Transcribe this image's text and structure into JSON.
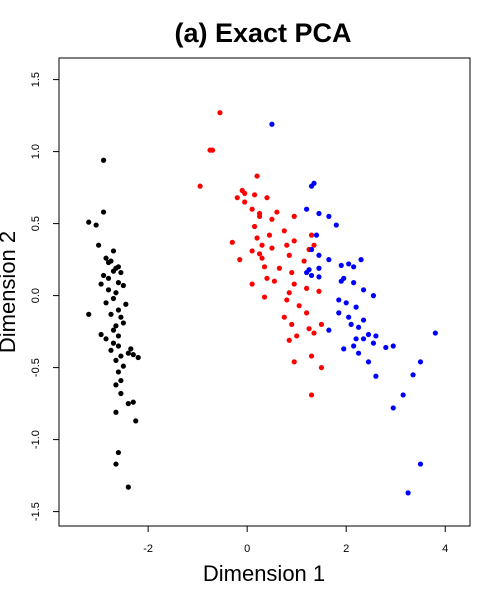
{
  "chart_data": {
    "type": "scatter",
    "title": "(a) Exact PCA",
    "xlabel": "Dimension 1",
    "ylabel": "Dimension 2",
    "xlim": [
      -3.8,
      4.5
    ],
    "ylim": [
      -1.6,
      1.65
    ],
    "xticks": [
      -2,
      0,
      2,
      4
    ],
    "yticks": [
      -1.5,
      -1.0,
      -0.5,
      0.0,
      0.5,
      1.0,
      1.5
    ],
    "xtick_labels": [
      "-2",
      "0",
      "2",
      "4"
    ],
    "ytick_labels": [
      "-1.5",
      "-1.0",
      "-0.5",
      "0.0",
      "0.5",
      "1.0",
      "1.5"
    ],
    "grid": false,
    "legend": "none",
    "series": [
      {
        "color": "#000000",
        "points": [
          [
            -2.9,
            0.94
          ],
          [
            -3.2,
            0.51
          ],
          [
            -3.2,
            -0.13
          ],
          [
            -2.9,
            0.58
          ],
          [
            -3.05,
            0.49
          ],
          [
            -3.0,
            0.35
          ],
          [
            -2.85,
            0.26
          ],
          [
            -2.8,
            0.23
          ],
          [
            -2.75,
            0.24
          ],
          [
            -2.7,
            0.31
          ],
          [
            -2.65,
            0.19
          ],
          [
            -2.6,
            0.2
          ],
          [
            -2.7,
            0.17
          ],
          [
            -2.55,
            0.16
          ],
          [
            -2.9,
            0.14
          ],
          [
            -2.8,
            0.12
          ],
          [
            -2.95,
            0.08
          ],
          [
            -2.6,
            0.09
          ],
          [
            -2.5,
            0.07
          ],
          [
            -2.8,
            0.04
          ],
          [
            -2.65,
            0.02
          ],
          [
            -2.7,
            -0.02
          ],
          [
            -2.45,
            -0.06
          ],
          [
            -2.85,
            -0.05
          ],
          [
            -2.6,
            -0.1
          ],
          [
            -2.75,
            -0.13
          ],
          [
            -2.55,
            -0.15
          ],
          [
            -2.5,
            -0.19
          ],
          [
            -2.65,
            -0.21
          ],
          [
            -2.7,
            -0.24
          ],
          [
            -2.95,
            -0.27
          ],
          [
            -2.85,
            -0.3
          ],
          [
            -2.7,
            -0.33
          ],
          [
            -2.6,
            -0.35
          ],
          [
            -2.75,
            -0.38
          ],
          [
            -2.4,
            -0.4
          ],
          [
            -2.55,
            -0.42
          ],
          [
            -2.3,
            -0.41
          ],
          [
            -2.2,
            -0.43
          ],
          [
            -2.65,
            -0.45
          ],
          [
            -2.5,
            -0.49
          ],
          [
            -2.6,
            -0.53
          ],
          [
            -2.55,
            -0.59
          ],
          [
            -2.65,
            -0.62
          ],
          [
            -2.55,
            -0.68
          ],
          [
            -2.3,
            -0.74
          ],
          [
            -2.4,
            -0.75
          ],
          [
            -2.65,
            -0.81
          ],
          [
            -2.25,
            -0.87
          ],
          [
            -2.6,
            -1.09
          ],
          [
            -2.65,
            -1.17
          ],
          [
            -2.4,
            -1.33
          ],
          [
            -2.35,
            -0.37
          ],
          [
            -2.6,
            -0.28
          ]
        ]
      },
      {
        "color": "#ff0000",
        "points": [
          [
            -0.55,
            1.27
          ],
          [
            -0.75,
            1.01
          ],
          [
            -0.7,
            1.01
          ],
          [
            -0.95,
            0.76
          ],
          [
            0.2,
            0.83
          ],
          [
            -0.1,
            0.73
          ],
          [
            -0.05,
            0.71
          ],
          [
            -0.2,
            0.68
          ],
          [
            0.15,
            0.7
          ],
          [
            0.4,
            0.68
          ],
          [
            -0.05,
            0.65
          ],
          [
            0.1,
            0.6
          ],
          [
            0.25,
            0.55
          ],
          [
            0.5,
            0.53
          ],
          [
            0.95,
            0.55
          ],
          [
            0.15,
            0.48
          ],
          [
            0.75,
            0.45
          ],
          [
            1.3,
            0.42
          ],
          [
            0.45,
            0.42
          ],
          [
            0.2,
            0.4
          ],
          [
            0.95,
            0.38
          ],
          [
            1.35,
            0.35
          ],
          [
            -0.3,
            0.37
          ],
          [
            0.3,
            0.35
          ],
          [
            0.1,
            0.31
          ],
          [
            0.25,
            0.29
          ],
          [
            0.8,
            0.35
          ],
          [
            0.5,
            0.33
          ],
          [
            1.25,
            0.32
          ],
          [
            0.85,
            0.28
          ],
          [
            0.3,
            0.26
          ],
          [
            -0.15,
            0.25
          ],
          [
            1.15,
            0.24
          ],
          [
            0.35,
            0.2
          ],
          [
            0.65,
            0.19
          ],
          [
            0.9,
            0.16
          ],
          [
            0.4,
            0.12
          ],
          [
            0.55,
            0.1
          ],
          [
            0.95,
            0.08
          ],
          [
            0.1,
            0.08
          ],
          [
            1.2,
            0.05
          ],
          [
            0.85,
            0.02
          ],
          [
            1.45,
            0.03
          ],
          [
            0.35,
            -0.01
          ],
          [
            0.8,
            -0.03
          ],
          [
            1.05,
            -0.07
          ],
          [
            1.2,
            -0.12
          ],
          [
            0.75,
            -0.15
          ],
          [
            0.9,
            -0.2
          ],
          [
            1.5,
            -0.2
          ],
          [
            1.25,
            -0.23
          ],
          [
            1.35,
            -0.26
          ],
          [
            1.0,
            -0.28
          ],
          [
            0.85,
            -0.31
          ],
          [
            1.3,
            -0.42
          ],
          [
            0.95,
            -0.46
          ],
          [
            1.5,
            -0.5
          ],
          [
            1.3,
            -0.69
          ],
          [
            0.25,
            0.57
          ],
          [
            0.6,
            0.58
          ]
        ]
      },
      {
        "color": "#0000ff",
        "points": [
          [
            0.5,
            1.19
          ],
          [
            1.35,
            0.78
          ],
          [
            1.3,
            0.76
          ],
          [
            1.2,
            0.6
          ],
          [
            1.45,
            0.57
          ],
          [
            1.65,
            0.55
          ],
          [
            1.8,
            0.49
          ],
          [
            1.4,
            0.42
          ],
          [
            1.3,
            0.32
          ],
          [
            1.45,
            0.28
          ],
          [
            1.65,
            0.25
          ],
          [
            2.3,
            0.25
          ],
          [
            2.05,
            0.22
          ],
          [
            1.9,
            0.21
          ],
          [
            2.15,
            0.2
          ],
          [
            1.25,
            0.18
          ],
          [
            1.45,
            0.19
          ],
          [
            1.2,
            0.16
          ],
          [
            1.3,
            0.14
          ],
          [
            1.45,
            0.13
          ],
          [
            1.95,
            0.12
          ],
          [
            2.15,
            0.09
          ],
          [
            2.35,
            0.04
          ],
          [
            2.55,
            0.0
          ],
          [
            1.85,
            -0.03
          ],
          [
            2.0,
            -0.05
          ],
          [
            2.2,
            -0.08
          ],
          [
            1.85,
            -0.12
          ],
          [
            2.05,
            -0.15
          ],
          [
            2.35,
            -0.17
          ],
          [
            1.65,
            -0.24
          ],
          [
            2.1,
            -0.2
          ],
          [
            2.25,
            -0.22
          ],
          [
            2.45,
            -0.27
          ],
          [
            2.6,
            -0.28
          ],
          [
            2.35,
            -0.3
          ],
          [
            2.55,
            -0.33
          ],
          [
            2.15,
            -0.35
          ],
          [
            1.95,
            -0.37
          ],
          [
            2.8,
            -0.36
          ],
          [
            2.95,
            -0.35
          ],
          [
            2.25,
            -0.4
          ],
          [
            3.8,
            -0.26
          ],
          [
            3.5,
            -0.46
          ],
          [
            2.45,
            -0.46
          ],
          [
            3.35,
            -0.55
          ],
          [
            2.6,
            -0.56
          ],
          [
            3.15,
            -0.69
          ],
          [
            2.95,
            -0.78
          ],
          [
            3.5,
            -1.17
          ],
          [
            3.25,
            -1.37
          ],
          [
            1.9,
            0.1
          ],
          [
            2.2,
            -0.3
          ]
        ]
      }
    ]
  }
}
